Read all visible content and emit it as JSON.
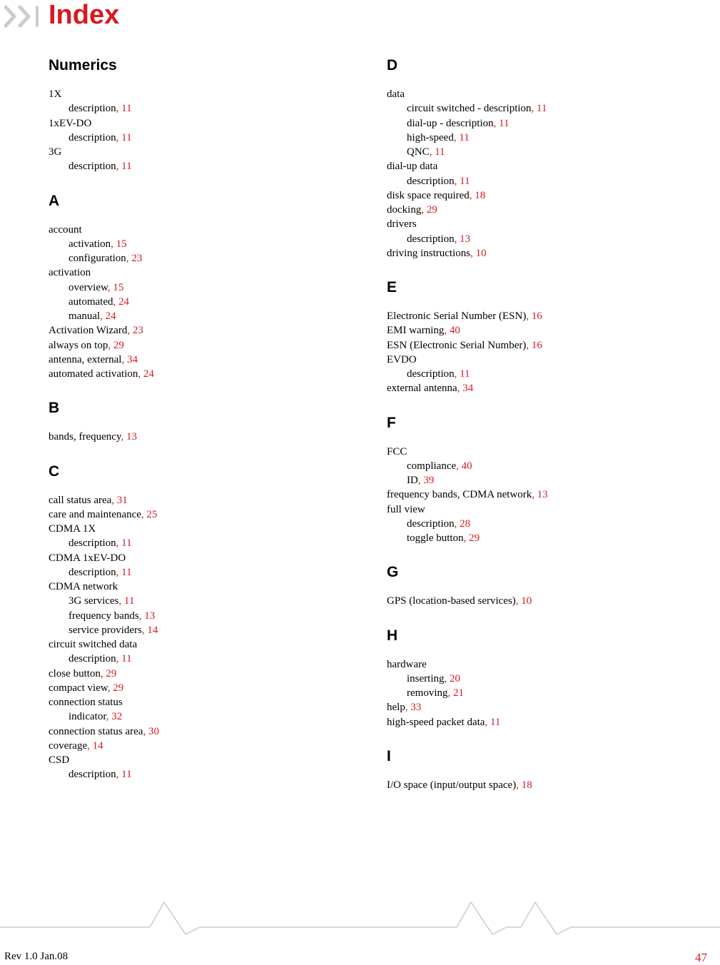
{
  "title": "Index",
  "accent_color": "#d71920",
  "footer": {
    "rev": "Rev 1.0  Jan.08",
    "page": "47"
  },
  "columns": [
    {
      "sections": [
        {
          "heading": "Numerics",
          "entries": [
            {
              "text": "1X",
              "page": null,
              "indent": 0
            },
            {
              "text": "description",
              "page": "11",
              "indent": 1
            },
            {
              "text": "1xEV-DO",
              "page": null,
              "indent": 0
            },
            {
              "text": "description",
              "page": "11",
              "indent": 1
            },
            {
              "text": "3G",
              "page": null,
              "indent": 0
            },
            {
              "text": "description",
              "page": "11",
              "indent": 1
            }
          ]
        },
        {
          "heading": "A",
          "entries": [
            {
              "text": "account",
              "page": null,
              "indent": 0
            },
            {
              "text": "activation",
              "page": "15",
              "indent": 1
            },
            {
              "text": "configuration",
              "page": "23",
              "indent": 1
            },
            {
              "text": "activation",
              "page": null,
              "indent": 0
            },
            {
              "text": "overview",
              "page": "15",
              "indent": 1
            },
            {
              "text": "automated",
              "page": "24",
              "indent": 1
            },
            {
              "text": "manual",
              "page": "24",
              "indent": 1
            },
            {
              "text": "Activation Wizard",
              "page": "23",
              "indent": 0
            },
            {
              "text": "always on top",
              "page": "29",
              "indent": 0
            },
            {
              "text": "antenna, external",
              "page": "34",
              "indent": 0
            },
            {
              "text": "automated activation",
              "page": "24",
              "indent": 0
            }
          ]
        },
        {
          "heading": "B",
          "entries": [
            {
              "text": "bands, frequency",
              "page": "13",
              "indent": 0
            }
          ]
        },
        {
          "heading": "C",
          "entries": [
            {
              "text": "call status area",
              "page": "31",
              "indent": 0
            },
            {
              "text": "care and maintenance",
              "page": "25",
              "indent": 0
            },
            {
              "text": "CDMA 1X",
              "page": null,
              "indent": 0
            },
            {
              "text": "description",
              "page": "11",
              "indent": 1
            },
            {
              "text": "CDMA 1xEV-DO",
              "page": null,
              "indent": 0
            },
            {
              "text": "description",
              "page": "11",
              "indent": 1
            },
            {
              "text": "CDMA network",
              "page": null,
              "indent": 0
            },
            {
              "text": "3G services",
              "page": "11",
              "indent": 1
            },
            {
              "text": "frequency bands",
              "page": "13",
              "indent": 1
            },
            {
              "text": "service providers",
              "page": "14",
              "indent": 1
            },
            {
              "text": "circuit switched data",
              "page": null,
              "indent": 0
            },
            {
              "text": "description",
              "page": "11",
              "indent": 1
            },
            {
              "text": "close button",
              "page": "29",
              "indent": 0
            },
            {
              "text": "compact view",
              "page": "29",
              "indent": 0
            },
            {
              "text": "connection status",
              "page": null,
              "indent": 0
            },
            {
              "text": "indicator",
              "page": "32",
              "indent": 1
            },
            {
              "text": "connection status area",
              "page": "30",
              "indent": 0
            },
            {
              "text": "coverage",
              "page": "14",
              "indent": 0
            },
            {
              "text": "CSD",
              "page": null,
              "indent": 0
            },
            {
              "text": "description",
              "page": "11",
              "indent": 1
            }
          ]
        }
      ]
    },
    {
      "sections": [
        {
          "heading": "D",
          "entries": [
            {
              "text": "data",
              "page": null,
              "indent": 0
            },
            {
              "text": "circuit switched - description",
              "page": "11",
              "indent": 1
            },
            {
              "text": "dial-up - description",
              "page": "11",
              "indent": 1
            },
            {
              "text": "high-speed",
              "page": "11",
              "indent": 1
            },
            {
              "text": "QNC",
              "page": "11",
              "indent": 1
            },
            {
              "text": "dial-up data",
              "page": null,
              "indent": 0
            },
            {
              "text": "description",
              "page": "11",
              "indent": 1
            },
            {
              "text": "disk space required",
              "page": "18",
              "indent": 0
            },
            {
              "text": "docking",
              "page": "29",
              "indent": 0
            },
            {
              "text": "drivers",
              "page": null,
              "indent": 0
            },
            {
              "text": "description",
              "page": "13",
              "indent": 1
            },
            {
              "text": "driving instructions",
              "page": "10",
              "indent": 0
            }
          ]
        },
        {
          "heading": "E",
          "entries": [
            {
              "text": "Electronic Serial Number (ESN)",
              "page": "16",
              "indent": 0
            },
            {
              "text": "EMI warning",
              "page": "40",
              "indent": 0
            },
            {
              "text": "ESN (Electronic Serial Number)",
              "page": "16",
              "indent": 0
            },
            {
              "text": "EVDO",
              "page": null,
              "indent": 0
            },
            {
              "text": "description",
              "page": "11",
              "indent": 1
            },
            {
              "text": "external antenna",
              "page": "34",
              "indent": 0
            }
          ]
        },
        {
          "heading": "F",
          "entries": [
            {
              "text": "FCC",
              "page": null,
              "indent": 0
            },
            {
              "text": "compliance",
              "page": "40",
              "indent": 1
            },
            {
              "text": "ID",
              "page": "39",
              "indent": 1
            },
            {
              "text": "frequency bands, CDMA network",
              "page": "13",
              "indent": 0
            },
            {
              "text": "full view",
              "page": null,
              "indent": 0
            },
            {
              "text": "description",
              "page": "28",
              "indent": 1
            },
            {
              "text": "toggle button",
              "page": "29",
              "indent": 1
            }
          ]
        },
        {
          "heading": "G",
          "entries": [
            {
              "text": "GPS (location-based services)",
              "page": "10",
              "indent": 0
            }
          ]
        },
        {
          "heading": "H",
          "entries": [
            {
              "text": "hardware",
              "page": null,
              "indent": 0
            },
            {
              "text": "inserting",
              "page": "20",
              "indent": 1
            },
            {
              "text": "removing",
              "page": "21",
              "indent": 1
            },
            {
              "text": "help",
              "page": "33",
              "indent": 0
            },
            {
              "text": "high-speed packet data",
              "page": "11",
              "indent": 0
            }
          ]
        },
        {
          "heading": "I",
          "entries": [
            {
              "text": "I/O space (input/output space)",
              "page": "18",
              "indent": 0
            }
          ]
        }
      ]
    }
  ]
}
